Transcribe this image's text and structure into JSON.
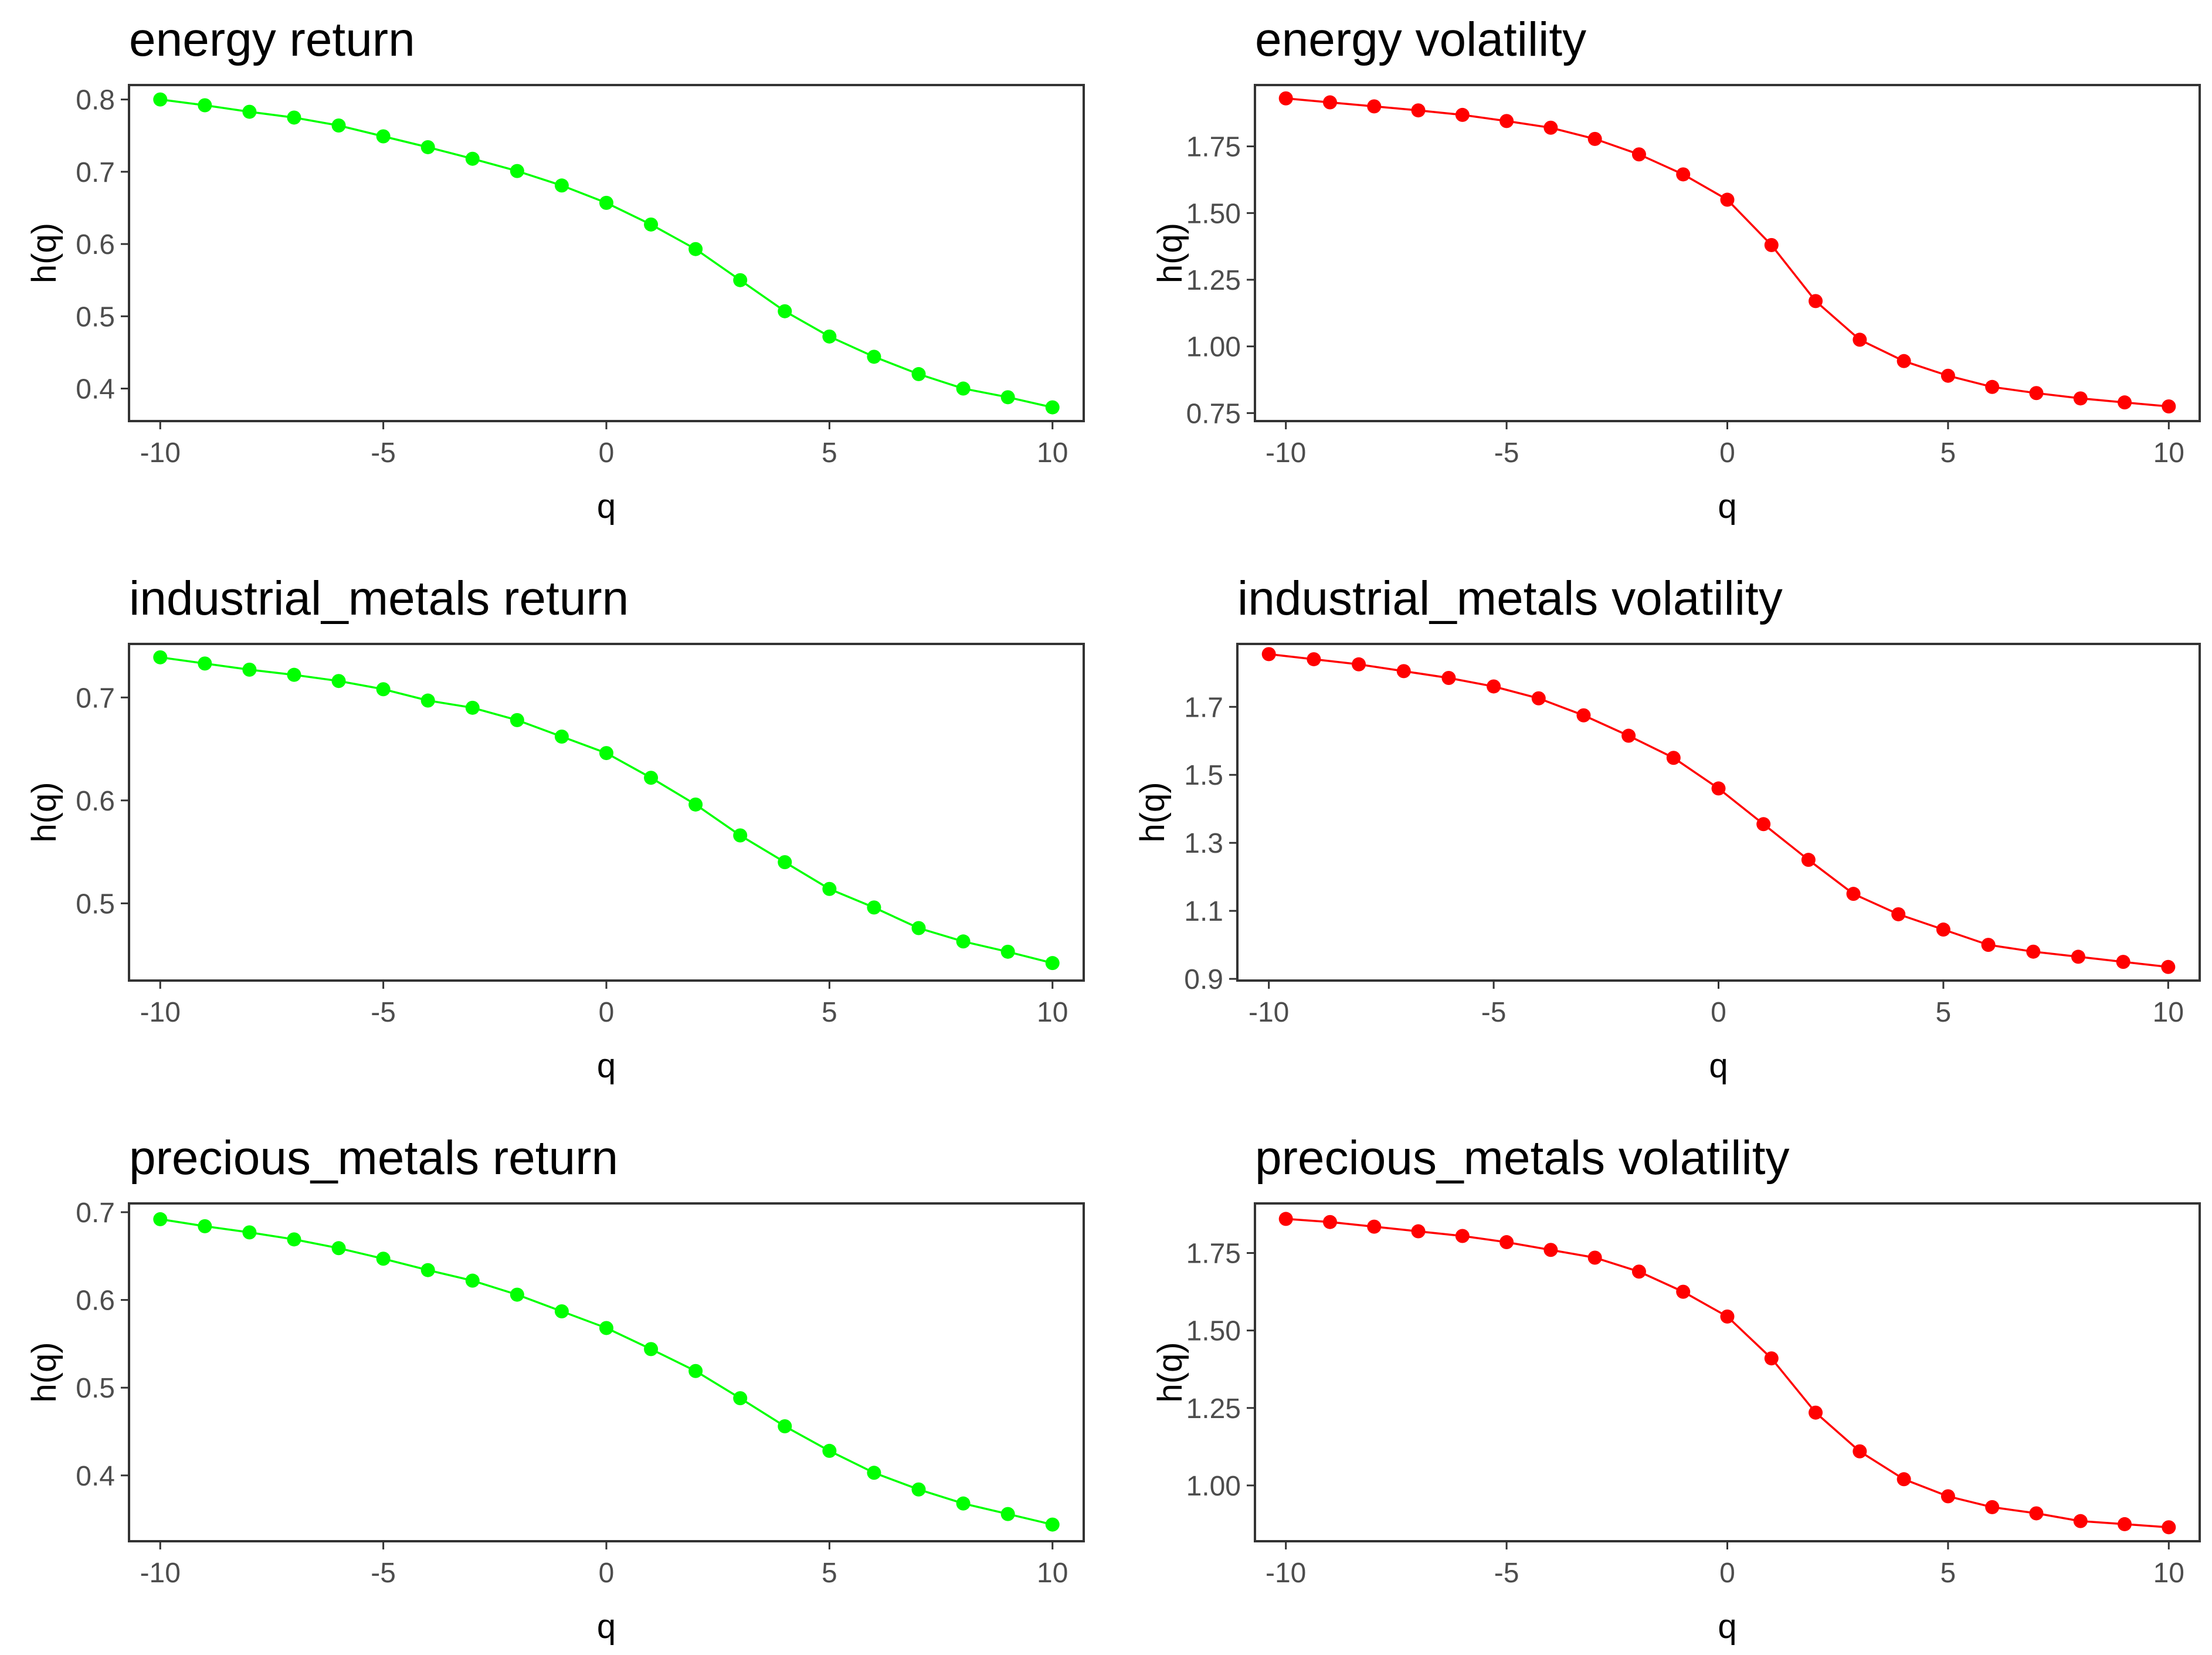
{
  "figure": {
    "panel_count": 6,
    "layout": "3 rows x 2 columns"
  },
  "chart_data": [
    {
      "type": "line",
      "title": "energy return",
      "xlabel": "q",
      "ylabel": "h(q)",
      "color": "#00ff00",
      "xlim": [
        -10.7,
        10.7
      ],
      "ylim": [
        0.355,
        0.82
      ],
      "xticks": [
        -10,
        -5,
        0,
        5,
        10
      ],
      "xtick_labels": [
        "-10",
        "-5",
        "0",
        "5",
        "10"
      ],
      "yticks": [
        0.4,
        0.5,
        0.6,
        0.7,
        0.8
      ],
      "ytick_labels": [
        "0.4",
        "0.5",
        "0.6",
        "0.7",
        "0.8"
      ],
      "x": [
        -10,
        -9,
        -8,
        -7,
        -6,
        -5,
        -4,
        -3,
        -2,
        -1,
        0,
        1,
        2,
        3,
        4,
        5,
        6,
        7,
        8,
        9,
        10
      ],
      "y": [
        0.8,
        0.792,
        0.783,
        0.775,
        0.764,
        0.749,
        0.734,
        0.718,
        0.701,
        0.681,
        0.657,
        0.627,
        0.593,
        0.55,
        0.507,
        0.472,
        0.444,
        0.42,
        0.4,
        0.388,
        0.374
      ]
    },
    {
      "type": "line",
      "title": "energy volatility",
      "xlabel": "q",
      "ylabel": "h(q)",
      "color": "#ff0000",
      "xlim": [
        -10.7,
        10.7
      ],
      "ylim": [
        0.72,
        1.98
      ],
      "xticks": [
        -10,
        -5,
        0,
        5,
        10
      ],
      "xtick_labels": [
        "-10",
        "-5",
        "0",
        "5",
        "10"
      ],
      "yticks": [
        0.75,
        1.0,
        1.25,
        1.5,
        1.75
      ],
      "ytick_labels": [
        "0.75",
        "1.00",
        "1.25",
        "1.50",
        "1.75"
      ],
      "x": [
        -10,
        -9,
        -8,
        -7,
        -6,
        -5,
        -4,
        -3,
        -2,
        -1,
        0,
        1,
        2,
        3,
        4,
        5,
        6,
        7,
        8,
        9,
        10
      ],
      "y": [
        1.93,
        1.915,
        1.9,
        1.885,
        1.868,
        1.845,
        1.82,
        1.778,
        1.72,
        1.645,
        1.55,
        1.38,
        1.17,
        1.025,
        0.945,
        0.89,
        0.848,
        0.825,
        0.805,
        0.79,
        0.775
      ]
    },
    {
      "type": "line",
      "title": "industrial_metals return",
      "xlabel": "q",
      "ylabel": "h(q)",
      "color": "#00ff00",
      "xlim": [
        -10.7,
        10.7
      ],
      "ylim": [
        0.425,
        0.752
      ],
      "xticks": [
        -10,
        -5,
        0,
        5,
        10
      ],
      "xtick_labels": [
        "-10",
        "-5",
        "0",
        "5",
        "10"
      ],
      "yticks": [
        0.5,
        0.6,
        0.7
      ],
      "ytick_labels": [
        "0.5",
        "0.6",
        "0.7"
      ],
      "x": [
        -10,
        -9,
        -8,
        -7,
        -6,
        -5,
        -4,
        -3,
        -2,
        -1,
        0,
        1,
        2,
        3,
        4,
        5,
        6,
        7,
        8,
        9,
        10
      ],
      "y": [
        0.739,
        0.733,
        0.727,
        0.722,
        0.716,
        0.708,
        0.697,
        0.69,
        0.678,
        0.662,
        0.646,
        0.622,
        0.596,
        0.566,
        0.54,
        0.514,
        0.496,
        0.476,
        0.463,
        0.453,
        0.442
      ]
    },
    {
      "type": "line",
      "title": "industrial_metals volatility",
      "xlabel": "q",
      "ylabel": "h(q)",
      "color": "#ff0000",
      "xlim": [
        -10.7,
        10.7
      ],
      "ylim": [
        0.895,
        1.885
      ],
      "xticks": [
        -10,
        -5,
        0,
        5,
        10
      ],
      "xtick_labels": [
        "-10",
        "-5",
        "0",
        "5",
        "10"
      ],
      "yticks": [
        0.9,
        1.1,
        1.3,
        1.5,
        1.7
      ],
      "ytick_labels": [
        "0.9",
        "1.1",
        "1.3",
        "1.5",
        "1.7"
      ],
      "x": [
        -10,
        -9,
        -8,
        -7,
        -6,
        -5,
        -4,
        -3,
        -2,
        -1,
        0,
        1,
        2,
        3,
        4,
        5,
        6,
        7,
        8,
        9,
        10
      ],
      "y": [
        1.855,
        1.84,
        1.825,
        1.805,
        1.785,
        1.76,
        1.725,
        1.675,
        1.615,
        1.55,
        1.46,
        1.355,
        1.25,
        1.15,
        1.09,
        1.045,
        1.0,
        0.98,
        0.965,
        0.95,
        0.935
      ]
    },
    {
      "type": "line",
      "title": "precious_metals return",
      "xlabel": "q",
      "ylabel": "h(q)",
      "color": "#00ff00",
      "xlim": [
        -10.7,
        10.7
      ],
      "ylim": [
        0.325,
        0.71
      ],
      "xticks": [
        -10,
        -5,
        0,
        5,
        10
      ],
      "xtick_labels": [
        "-10",
        "-5",
        "0",
        "5",
        "10"
      ],
      "yticks": [
        0.4,
        0.5,
        0.6,
        0.7
      ],
      "ytick_labels": [
        "0.4",
        "0.5",
        "0.6",
        "0.7"
      ],
      "x": [
        -10,
        -9,
        -8,
        -7,
        -6,
        -5,
        -4,
        -3,
        -2,
        -1,
        0,
        1,
        2,
        3,
        4,
        5,
        6,
        7,
        8,
        9,
        10
      ],
      "y": [
        0.692,
        0.684,
        0.677,
        0.669,
        0.659,
        0.647,
        0.634,
        0.622,
        0.606,
        0.587,
        0.568,
        0.544,
        0.519,
        0.488,
        0.456,
        0.428,
        0.403,
        0.384,
        0.368,
        0.356,
        0.344
      ]
    },
    {
      "type": "line",
      "title": "precious_metals volatility",
      "xlabel": "q",
      "ylabel": "h(q)",
      "color": "#ff0000",
      "xlim": [
        -10.7,
        10.7
      ],
      "ylim": [
        0.82,
        1.91
      ],
      "xticks": [
        -10,
        -5,
        0,
        5,
        10
      ],
      "xtick_labels": [
        "-10",
        "-5",
        "0",
        "5",
        "10"
      ],
      "yticks": [
        1.0,
        1.25,
        1.5,
        1.75
      ],
      "ytick_labels": [
        "1.00",
        "1.25",
        "1.50",
        "1.75"
      ],
      "x": [
        -10,
        -9,
        -8,
        -7,
        -6,
        -5,
        -4,
        -3,
        -2,
        -1,
        0,
        1,
        2,
        3,
        4,
        5,
        6,
        7,
        8,
        9,
        10
      ],
      "y": [
        1.86,
        1.85,
        1.835,
        1.82,
        1.805,
        1.785,
        1.76,
        1.735,
        1.69,
        1.625,
        1.545,
        1.41,
        1.235,
        1.11,
        1.02,
        0.965,
        0.93,
        0.91,
        0.885,
        0.875,
        0.865
      ]
    }
  ]
}
